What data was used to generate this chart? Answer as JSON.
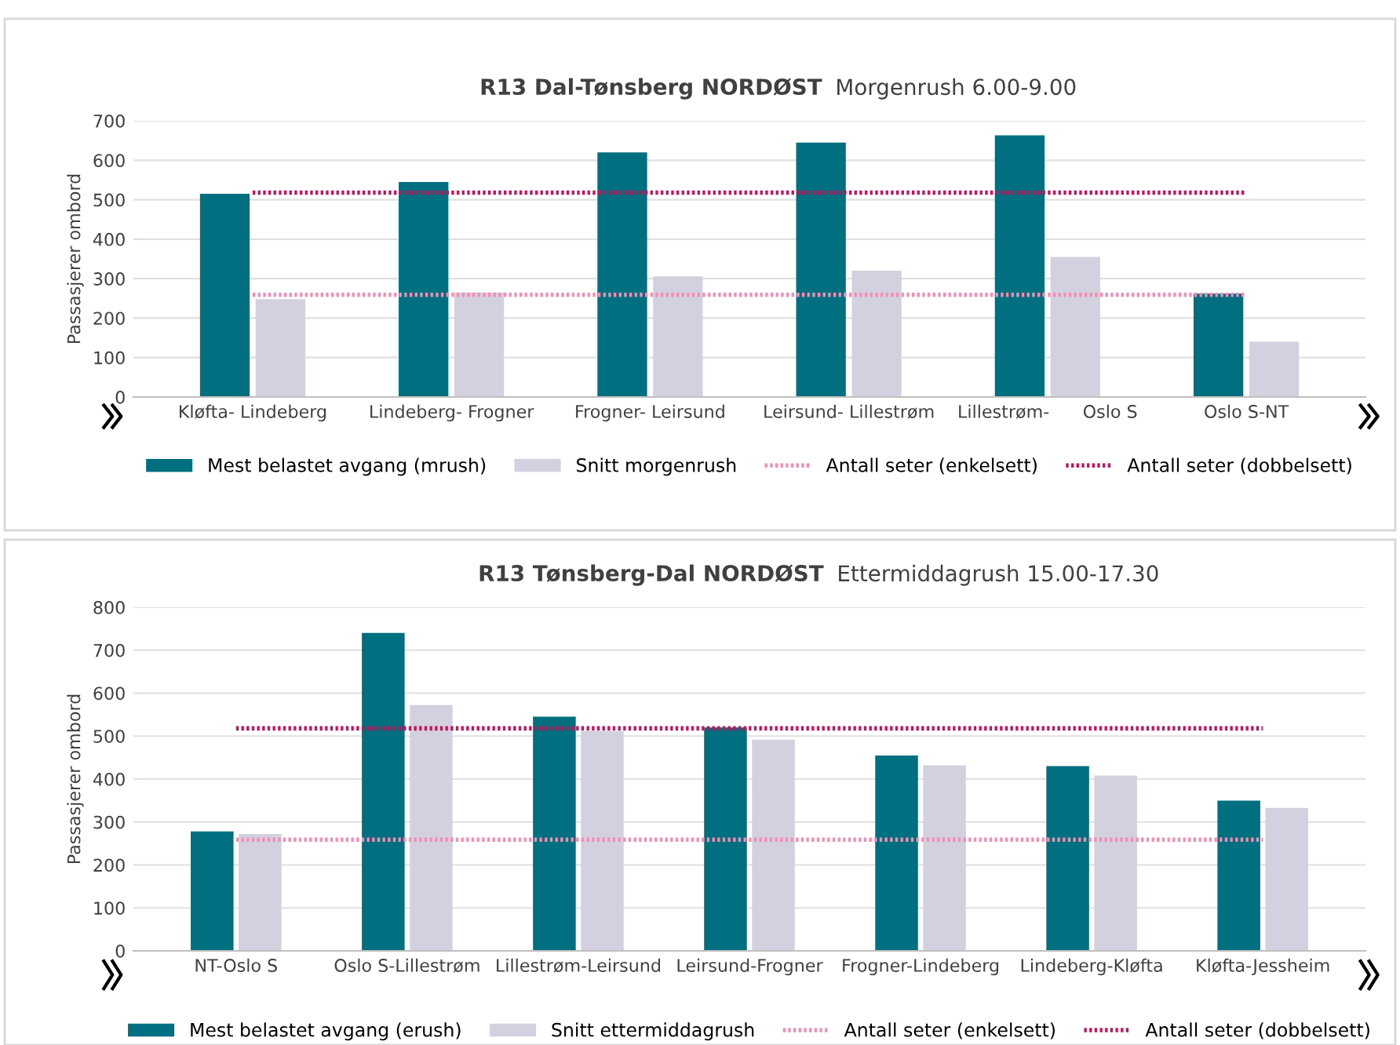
{
  "chart_data": [
    {
      "type": "bar",
      "title": "R13 Dal-Tønsberg NORDØST",
      "subtitle": "Morgenrush 6.00-9.00",
      "ylabel": "Passasjerer ombord",
      "categories": [
        "Kløfta- Lindeberg",
        "Lindeberg- Frogner",
        "Frogner- Leirsund",
        "Leirsund- Lillestrøm",
        "Lillestrøm-      Oslo S",
        "Oslo S-NT"
      ],
      "series": [
        {
          "name": "Mest belastet avgang (mrush)",
          "color": "#006f7f",
          "values": [
            515,
            545,
            620,
            645,
            663,
            262
          ]
        },
        {
          "name": "Snitt morgenrush",
          "color": "#d3d1df",
          "values": [
            248,
            265,
            306,
            320,
            355,
            140
          ]
        },
        {
          "name": "Antall seter (enkelsett)",
          "type": "line",
          "color": "#f48cb4",
          "values": [
            259,
            259,
            259,
            259,
            259,
            259
          ]
        },
        {
          "name": "Antall seter (dobbelsett)",
          "type": "line",
          "color": "#c8105a",
          "values": [
            518,
            518,
            518,
            518,
            518,
            518
          ]
        }
      ],
      "ylim": [
        0,
        700
      ],
      "yticks": [
        0,
        100,
        200,
        300,
        400,
        500,
        600,
        700
      ],
      "grid": "y",
      "legend": "bottom",
      "marker": "none",
      "line_style": "dotted"
    },
    {
      "type": "bar",
      "title": "R13 Tønsberg-Dal NORDØST",
      "subtitle": "Ettermiddagrush 15.00-17.30",
      "ylabel": "Passasjerer ombord",
      "categories": [
        "NT-Oslo S",
        "Oslo S-Lillestrøm",
        "Lillestrøm-Leirsund",
        "Leirsund-Frogner",
        "Frogner-Lindeberg",
        "Lindeberg-Kløfta",
        "Kløfta-Jessheim"
      ],
      "series": [
        {
          "name": "Mest belastet avgang (erush)",
          "color": "#006f7f",
          "values": [
            278,
            740,
            545,
            520,
            455,
            430,
            350
          ]
        },
        {
          "name": "Snitt ettermiddagrush",
          "color": "#d3d1df",
          "values": [
            272,
            572,
            512,
            492,
            432,
            408,
            333
          ]
        },
        {
          "name": "Antall seter (enkelsett)",
          "type": "line",
          "color": "#f48cb4",
          "values": [
            259,
            259,
            259,
            259,
            259,
            259,
            259
          ]
        },
        {
          "name": "Antall seter (dobbelsett)",
          "type": "line",
          "color": "#c8105a",
          "values": [
            518,
            518,
            518,
            518,
            518,
            518,
            518
          ]
        }
      ],
      "ylim": [
        0,
        800
      ],
      "yticks": [
        0,
        100,
        200,
        300,
        400,
        500,
        600,
        700,
        800
      ],
      "grid": "y",
      "legend": "bottom",
      "marker": "none",
      "line_style": "dotted"
    }
  ]
}
